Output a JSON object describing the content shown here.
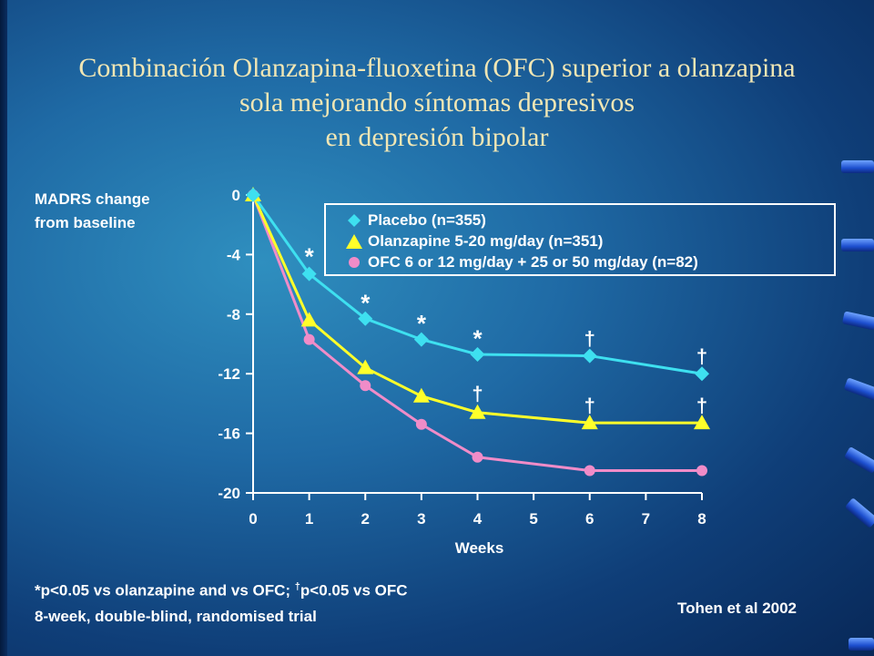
{
  "title": {
    "line1": "Combinación Olanzapina-fluoxetina (OFC) superior a olanzapina",
    "line2": "sola mejorando síntomas depresivos",
    "line3": "en depresión bipolar"
  },
  "ylabel": {
    "line1": "MADRS change",
    "line2": "from baseline"
  },
  "footnote": {
    "part1": "*p<0.05 vs olanzapine and vs OFC; ",
    "dagger": "†",
    "part2": "p<0.05 vs OFC",
    "line2": "8-week, double-blind, randomised trial"
  },
  "citation": "Tohen et al 2002",
  "colors": {
    "placebo": "#3ee0f0",
    "olanzapine": "#ffff2a",
    "ofc": "#f08cc8"
  },
  "chart_data": {
    "type": "line",
    "xlabel": "Weeks",
    "ylabel": "MADRS change from baseline",
    "xlim": [
      0,
      8
    ],
    "ylim": [
      -20,
      0
    ],
    "x_ticks": [
      "0",
      "1",
      "2",
      "3",
      "4",
      "5",
      "6",
      "7",
      "8"
    ],
    "y_ticks": [
      "0",
      "-4",
      "-8",
      "-12",
      "-16",
      "-20"
    ],
    "legend_position": "top-right",
    "series": [
      {
        "name": "Placebo (n=355)",
        "marker": "diamond",
        "x": [
          0,
          1,
          2,
          3,
          4,
          6,
          8
        ],
        "y": [
          0,
          -5.3,
          -8.3,
          -9.7,
          -10.7,
          -10.8,
          -12.0
        ]
      },
      {
        "name": "Olanzapine 5-20 mg/day (n=351)",
        "marker": "triangle",
        "x": [
          0,
          1,
          2,
          3,
          4,
          6,
          8
        ],
        "y": [
          0,
          -8.4,
          -11.6,
          -13.5,
          -14.6,
          -15.3,
          -15.3
        ]
      },
      {
        "name": "OFC 6 or 12 mg/day + 25 or 50 mg/day (n=82)",
        "marker": "circle",
        "x": [
          0,
          1,
          2,
          3,
          4,
          6,
          8
        ],
        "y": [
          0,
          -9.7,
          -12.8,
          -15.4,
          -17.6,
          -18.5,
          -18.5
        ]
      }
    ],
    "annotations": [
      {
        "text": "*",
        "x": 1,
        "y": -4.2
      },
      {
        "text": "*",
        "x": 2,
        "y": -7.3
      },
      {
        "text": "*",
        "x": 3,
        "y": -8.7
      },
      {
        "text": "*",
        "x": 4,
        "y": -9.7
      },
      {
        "text": "†",
        "x": 6,
        "y": -9.6
      },
      {
        "text": "†",
        "x": 8,
        "y": -10.8
      },
      {
        "text": "†",
        "x": 4,
        "y": -13.3
      },
      {
        "text": "†",
        "x": 6,
        "y": -14.1
      },
      {
        "text": "†",
        "x": 8,
        "y": -14.1
      }
    ]
  }
}
